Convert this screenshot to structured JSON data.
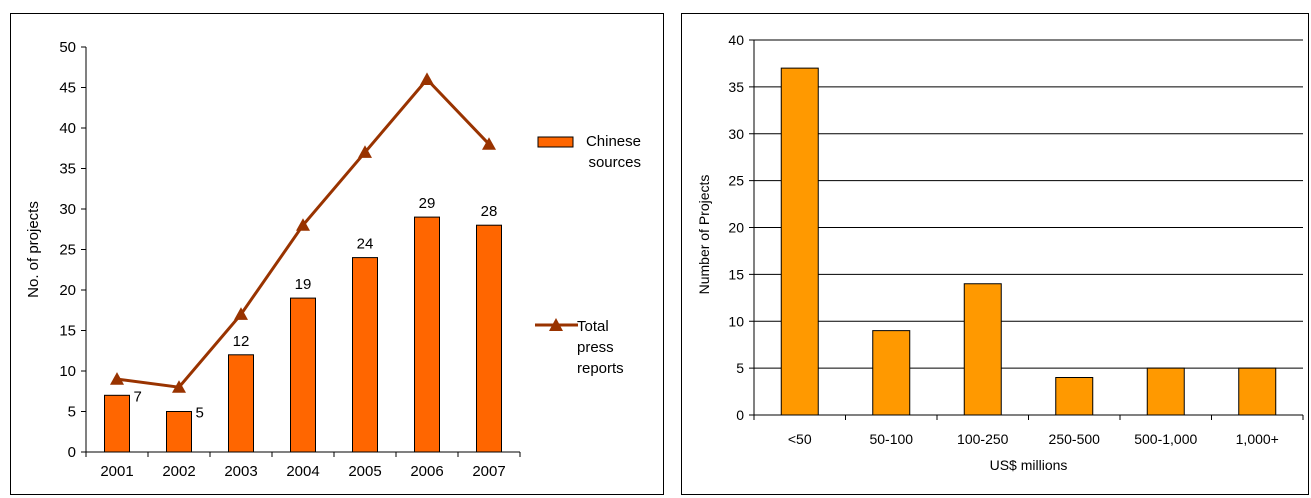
{
  "chart_data": [
    {
      "type": "bar",
      "title": "",
      "xlabel": "",
      "ylabel": "No. of projects",
      "ylim": [
        0,
        50
      ],
      "yticks": [
        0,
        5,
        10,
        15,
        20,
        25,
        30,
        35,
        40,
        45,
        50
      ],
      "categories": [
        "2001",
        "2002",
        "2003",
        "2004",
        "2005",
        "2006",
        "2007"
      ],
      "grid": false,
      "legend": "right",
      "series": [
        {
          "name": "Chinese sources",
          "kind": "bar",
          "color": "#FF6600",
          "values": [
            7,
            5,
            12,
            19,
            24,
            29,
            28
          ],
          "data_labels": [
            "7",
            "5",
            "12",
            "19",
            "24",
            "29",
            "28"
          ]
        },
        {
          "name": "Total press reports",
          "kind": "line",
          "marker": "triangle",
          "color": "#993300",
          "values": [
            9,
            8,
            17,
            28,
            37,
            46,
            38
          ]
        }
      ],
      "legend_lines": [
        [
          "Chinese",
          "sources"
        ],
        [
          "Total",
          "press",
          "reports"
        ]
      ]
    },
    {
      "type": "bar",
      "title": "",
      "xlabel": "US$ millions",
      "ylabel": "Number of Projects",
      "ylim": [
        0,
        40
      ],
      "yticks": [
        0,
        5,
        10,
        15,
        20,
        25,
        30,
        35,
        40
      ],
      "categories": [
        "<50",
        "50-100",
        "100-250",
        "250-500",
        "500-1,000",
        "1,000+"
      ],
      "grid": true,
      "color": "#FF9900",
      "values": [
        37,
        9,
        14,
        4,
        5,
        5
      ]
    }
  ]
}
